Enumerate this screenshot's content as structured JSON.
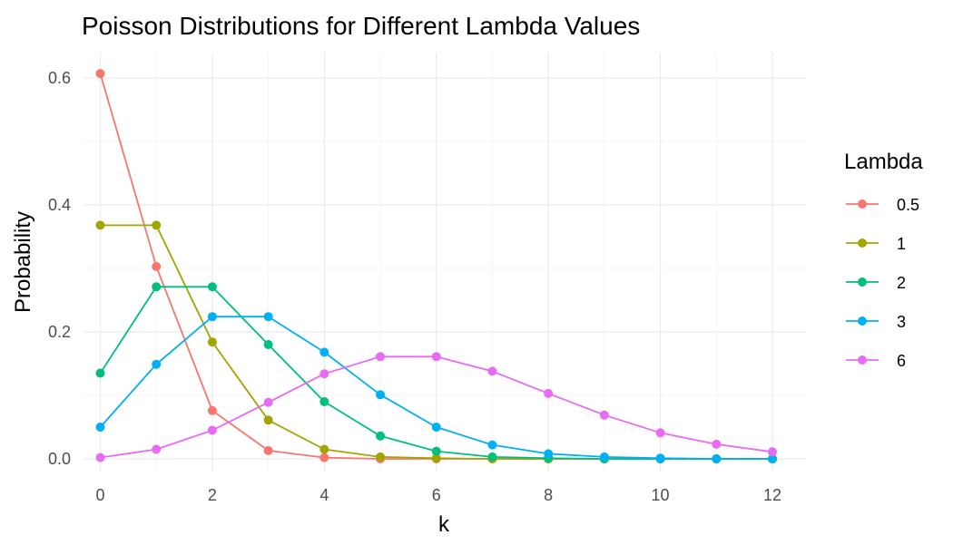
{
  "chart_data": {
    "type": "line",
    "title": "Poisson Distributions for Different Lambda Values",
    "xlabel": "k",
    "ylabel": "Probability",
    "xlim": [
      -0.3,
      12.6
    ],
    "ylim": [
      -0.02,
      0.64
    ],
    "x_ticks": [
      0,
      2,
      4,
      6,
      8,
      10,
      12
    ],
    "y_ticks": [
      0.0,
      0.2,
      0.4,
      0.6
    ],
    "x_tick_labels": [
      "0",
      "2",
      "4",
      "6",
      "8",
      "10",
      "12"
    ],
    "y_tick_labels": [
      "0.0",
      "0.2",
      "0.4",
      "0.6"
    ],
    "grid": true,
    "legend": {
      "title": "Lambda",
      "placement": "right"
    },
    "series": [
      {
        "name": "0.5",
        "color": "#F8766D",
        "x": [
          0,
          1,
          2,
          3,
          4,
          5,
          6,
          7,
          8,
          9,
          10,
          11,
          12
        ],
        "values": [
          0.607,
          0.303,
          0.076,
          0.013,
          0.002,
          0.0,
          0.0,
          0.0,
          0.0,
          0.0,
          0.0,
          0.0,
          0.0
        ]
      },
      {
        "name": "1",
        "color": "#A3A500",
        "x": [
          0,
          1,
          2,
          3,
          4,
          5,
          6,
          7,
          8,
          9,
          10,
          11,
          12
        ],
        "values": [
          0.368,
          0.368,
          0.184,
          0.061,
          0.015,
          0.003,
          0.001,
          0.0,
          0.0,
          0.0,
          0.0,
          0.0,
          0.0
        ]
      },
      {
        "name": "2",
        "color": "#00BF7D",
        "x": [
          0,
          1,
          2,
          3,
          4,
          5,
          6,
          7,
          8,
          9,
          10,
          11,
          12
        ],
        "values": [
          0.135,
          0.271,
          0.271,
          0.18,
          0.09,
          0.036,
          0.012,
          0.003,
          0.001,
          0.0,
          0.0,
          0.0,
          0.0
        ]
      },
      {
        "name": "3",
        "color": "#00B0F6",
        "x": [
          0,
          1,
          2,
          3,
          4,
          5,
          6,
          7,
          8,
          9,
          10,
          11,
          12
        ],
        "values": [
          0.05,
          0.149,
          0.224,
          0.224,
          0.168,
          0.101,
          0.05,
          0.022,
          0.008,
          0.003,
          0.001,
          0.0,
          0.0
        ]
      },
      {
        "name": "6",
        "color": "#E76BF3",
        "x": [
          0,
          1,
          2,
          3,
          4,
          5,
          6,
          7,
          8,
          9,
          10,
          11,
          12
        ],
        "values": [
          0.002,
          0.015,
          0.045,
          0.089,
          0.134,
          0.161,
          0.161,
          0.138,
          0.103,
          0.069,
          0.041,
          0.023,
          0.011
        ]
      }
    ]
  }
}
